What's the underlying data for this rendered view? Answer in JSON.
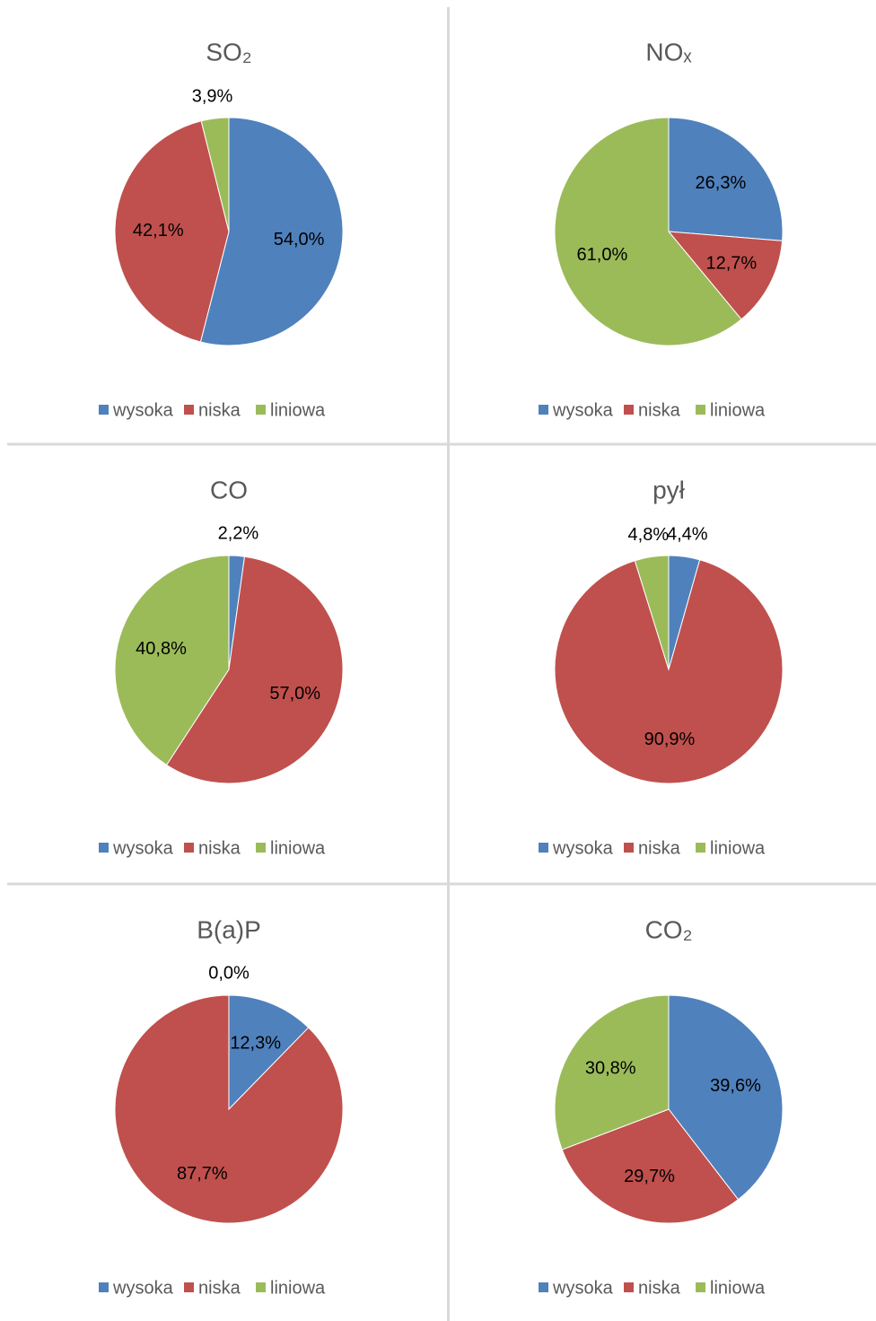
{
  "chart_data": [
    {
      "type": "pie",
      "title": "SO₂",
      "categories": [
        "wysoka",
        "niska",
        "liniowa"
      ],
      "values": [
        54.0,
        42.1,
        3.9
      ],
      "value_labels": [
        "54,0%",
        "42,1%",
        "3,9%"
      ],
      "colors": [
        "#4f81bd",
        "#c0504d",
        "#9bbb59"
      ]
    },
    {
      "type": "pie",
      "title": "NOₓ",
      "categories": [
        "wysoka",
        "niska",
        "liniowa"
      ],
      "values": [
        26.3,
        12.7,
        61.0
      ],
      "value_labels": [
        "26,3%",
        "12,7%",
        "61,0%"
      ],
      "colors": [
        "#4f81bd",
        "#c0504d",
        "#9bbb59"
      ]
    },
    {
      "type": "pie",
      "title": "CO",
      "categories": [
        "wysoka",
        "niska",
        "liniowa"
      ],
      "values": [
        2.2,
        57.0,
        40.8
      ],
      "value_labels": [
        "2,2%",
        "57,0%",
        "40,8%"
      ],
      "colors": [
        "#4f81bd",
        "#c0504d",
        "#9bbb59"
      ]
    },
    {
      "type": "pie",
      "title": "pył",
      "categories": [
        "wysoka",
        "niska",
        "liniowa"
      ],
      "values": [
        4.4,
        90.9,
        4.8
      ],
      "value_labels": [
        "4,4%",
        "90,9%",
        "4,8%"
      ],
      "colors": [
        "#4f81bd",
        "#c0504d",
        "#9bbb59"
      ]
    },
    {
      "type": "pie",
      "title": "B(a)P",
      "categories": [
        "wysoka",
        "niska",
        "liniowa"
      ],
      "values": [
        12.3,
        87.7,
        0.0
      ],
      "value_labels": [
        "12,3%",
        "87,7%",
        "0,0%"
      ],
      "colors": [
        "#4f81bd",
        "#c0504d",
        "#9bbb59"
      ]
    },
    {
      "type": "pie",
      "title": "CO₂",
      "categories": [
        "wysoka",
        "niska",
        "liniowa"
      ],
      "values": [
        39.6,
        29.7,
        30.8
      ],
      "value_labels": [
        "39,6%",
        "29,7%",
        "30,8%"
      ],
      "colors": [
        "#4f81bd",
        "#c0504d",
        "#9bbb59"
      ]
    }
  ]
}
